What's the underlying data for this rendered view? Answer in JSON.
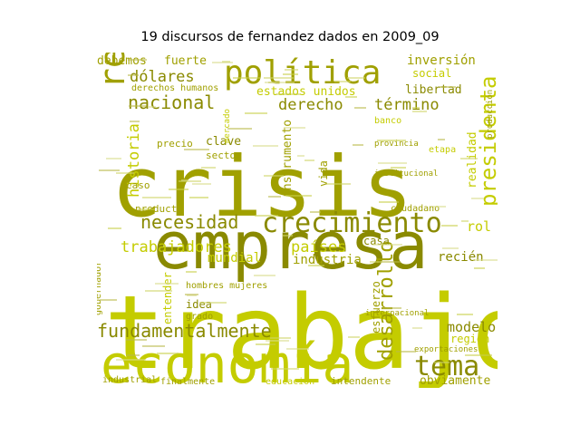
{
  "title": "19 discursos de fernandez dados en 2009_09",
  "colors": {
    "olive_dark": "#8a8a00",
    "olive": "#a0a000",
    "lime": "#c4cc00",
    "yellow": "#cfd610",
    "khaki": "#b9b94a"
  },
  "words": [
    {
      "text": "trabajo",
      "weight": 1.0,
      "color": "lime"
    },
    {
      "text": "crisis",
      "weight": 0.86,
      "color": "olive"
    },
    {
      "text": "empresa",
      "weight": 0.74,
      "color": "olive_dark"
    },
    {
      "text": "economía",
      "weight": 0.6,
      "color": "lime"
    },
    {
      "text": "política",
      "weight": 0.45,
      "color": "olive"
    },
    {
      "text": "crecimiento",
      "weight": 0.36,
      "color": "olive_dark"
    },
    {
      "text": "república",
      "weight": 0.42,
      "color": "olive"
    },
    {
      "text": "presidenta",
      "weight": 0.26,
      "color": "lime"
    },
    {
      "text": "tema",
      "weight": 0.34,
      "color": "olive_dark"
    },
    {
      "text": "desarrollo",
      "weight": 0.26,
      "color": "olive"
    },
    {
      "text": "fundamentalmente",
      "weight": 0.24,
      "color": "olive_dark"
    },
    {
      "text": "necesidad",
      "weight": 0.24,
      "color": "olive_dark"
    },
    {
      "text": "nacional",
      "weight": 0.24,
      "color": "olive_dark"
    },
    {
      "text": "dólares",
      "weight": 0.2,
      "color": "olive_dark"
    },
    {
      "text": "derecho",
      "weight": 0.2,
      "color": "olive_dark"
    },
    {
      "text": "término",
      "weight": 0.2,
      "color": "olive_dark"
    },
    {
      "text": "trabajadores",
      "weight": 0.2,
      "color": "lime"
    },
    {
      "text": "países",
      "weight": 0.2,
      "color": "lime"
    },
    {
      "text": "historia",
      "weight": 0.2,
      "color": "lime"
    },
    {
      "text": "modelo",
      "weight": 0.18,
      "color": "olive_dark"
    },
    {
      "text": "industria",
      "weight": 0.17,
      "color": "olive"
    },
    {
      "text": "inversión",
      "weight": 0.17,
      "color": "olive"
    },
    {
      "text": "debemos",
      "weight": 0.15,
      "color": "olive"
    },
    {
      "text": "fuerte",
      "weight": 0.15,
      "color": "olive"
    },
    {
      "text": "libertad",
      "weight": 0.15,
      "color": "olive_dark"
    },
    {
      "text": "estados unidos",
      "weight": 0.15,
      "color": "lime"
    },
    {
      "text": "instrumento",
      "weight": 0.15,
      "color": "olive"
    },
    {
      "text": "mundial",
      "weight": 0.15,
      "color": "lime"
    },
    {
      "text": "obviamente",
      "weight": 0.14,
      "color": "olive"
    },
    {
      "text": "rol",
      "weight": 0.15,
      "color": "lime"
    },
    {
      "text": "recién",
      "weight": 0.15,
      "color": "olive_dark"
    },
    {
      "text": "clave",
      "weight": 0.15,
      "color": "olive_dark"
    },
    {
      "text": "casa",
      "weight": 0.13,
      "color": "olive_dark"
    },
    {
      "text": "idea",
      "weight": 0.13,
      "color": "olive_dark"
    },
    {
      "text": "realidad",
      "weight": 0.13,
      "color": "lime"
    },
    {
      "text": "vida",
      "weight": 0.13,
      "color": "olive"
    },
    {
      "text": "región",
      "weight": 0.13,
      "color": "lime"
    },
    {
      "text": "social",
      "weight": 0.12,
      "color": "lime"
    },
    {
      "text": "precio",
      "weight": 0.11,
      "color": "olive"
    },
    {
      "text": "sector",
      "weight": 0.11,
      "color": "olive"
    },
    {
      "text": "caso",
      "weight": 0.11,
      "color": "olive"
    },
    {
      "text": "producto",
      "weight": 0.11,
      "color": "olive"
    },
    {
      "text": "esfuerzo",
      "weight": 0.12,
      "color": "olive"
    },
    {
      "text": "entender",
      "weight": 0.12,
      "color": "lime"
    },
    {
      "text": "grado",
      "weight": 0.1,
      "color": "olive"
    },
    {
      "text": "derechos humanos",
      "weight": 0.1,
      "color": "olive"
    },
    {
      "text": "hombres mujeres",
      "weight": 0.09,
      "color": "olive"
    },
    {
      "text": "ciudadano",
      "weight": 0.09,
      "color": "olive"
    },
    {
      "text": "etapa",
      "weight": 0.09,
      "color": "lime"
    },
    {
      "text": "banco",
      "weight": 0.09,
      "color": "lime"
    },
    {
      "text": "educación",
      "weight": 0.09,
      "color": "lime"
    },
    {
      "text": "intendente",
      "weight": 0.1,
      "color": "olive"
    },
    {
      "text": "finalmente",
      "weight": 0.09,
      "color": "olive"
    },
    {
      "text": "industrial",
      "weight": 0.09,
      "color": "olive"
    },
    {
      "text": "gobernador",
      "weight": 0.09,
      "color": "olive"
    },
    {
      "text": "exportaciones",
      "weight": 0.08,
      "color": "olive"
    },
    {
      "text": "producción",
      "weight": 0.08,
      "color": "olive"
    },
    {
      "text": "mercado",
      "weight": 0.08,
      "color": "lime"
    },
    {
      "text": "internacional",
      "weight": 0.08,
      "color": "olive"
    },
    {
      "text": "provincia",
      "weight": 0.08,
      "color": "olive"
    },
    {
      "text": "institucional",
      "weight": 0.08,
      "color": "olive"
    }
  ]
}
